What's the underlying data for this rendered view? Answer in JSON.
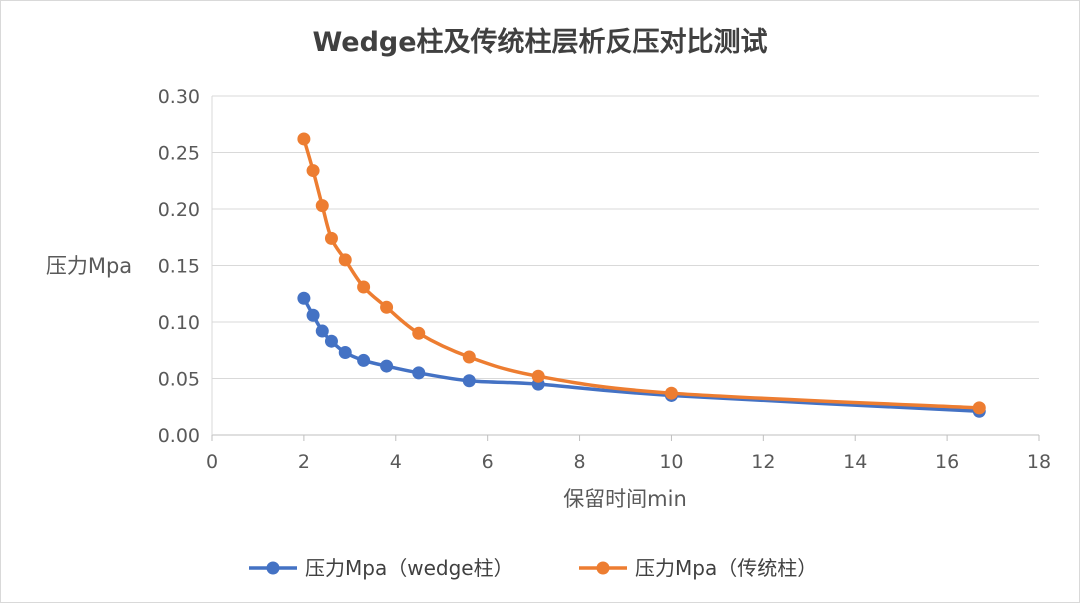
{
  "chart_data": {
    "type": "line",
    "title": "Wedge柱及传统柱层析反压对比测试",
    "xlabel": "保留时间min",
    "ylabel": "压力Mpa",
    "xlim": [
      0,
      18
    ],
    "ylim": [
      0,
      0.3
    ],
    "xticks": [
      0,
      2,
      4,
      6,
      8,
      10,
      12,
      14,
      16,
      18
    ],
    "yticks": [
      0.0,
      0.05,
      0.1,
      0.15,
      0.2,
      0.25,
      0.3
    ],
    "x_tick_labels": [
      "0",
      "2",
      "4",
      "6",
      "8",
      "10",
      "12",
      "14",
      "16",
      "18"
    ],
    "y_tick_labels": [
      "0.00",
      "0.05",
      "0.10",
      "0.15",
      "0.20",
      "0.25",
      "0.30"
    ],
    "grid": "horizontal",
    "legend_position": "bottom",
    "series": [
      {
        "name": "压力Mpa（wedge柱）",
        "color": "#4472C4",
        "x": [
          2.0,
          2.2,
          2.4,
          2.6,
          2.9,
          3.3,
          3.8,
          4.5,
          5.6,
          7.1,
          10.0,
          16.7
        ],
        "y": [
          0.121,
          0.106,
          0.092,
          0.083,
          0.073,
          0.066,
          0.061,
          0.055,
          0.048,
          0.045,
          0.035,
          0.021
        ]
      },
      {
        "name": "压力Mpa（传统柱）",
        "color": "#ED7D31",
        "x": [
          2.0,
          2.2,
          2.4,
          2.6,
          2.9,
          3.3,
          3.8,
          4.5,
          5.6,
          7.1,
          10.0,
          16.7
        ],
        "y": [
          0.262,
          0.234,
          0.203,
          0.174,
          0.155,
          0.131,
          0.113,
          0.09,
          0.069,
          0.052,
          0.037,
          0.024
        ]
      }
    ]
  }
}
